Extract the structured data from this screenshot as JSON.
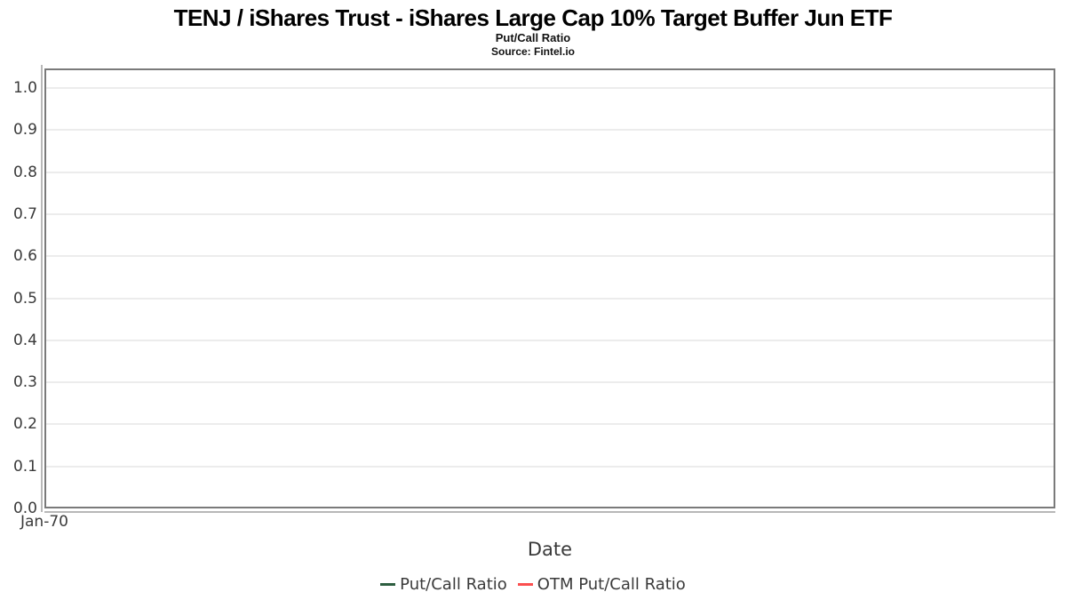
{
  "chart": {
    "title": "TENJ / iShares Trust - iShares Large Cap 10% Target Buffer Jun ETF",
    "subtitle": "Put/Call Ratio",
    "source": "Source: Fintel.io",
    "xlabel": "Date",
    "x_ticks": [
      "Jan-70"
    ],
    "y_ticks": [
      {
        "label": "0.0",
        "value": 0.0
      },
      {
        "label": "0.1",
        "value": 0.1
      },
      {
        "label": "0.2",
        "value": 0.2
      },
      {
        "label": "0.3",
        "value": 0.3
      },
      {
        "label": "0.4",
        "value": 0.4
      },
      {
        "label": "0.5",
        "value": 0.5
      },
      {
        "label": "0.6",
        "value": 0.6
      },
      {
        "label": "0.7",
        "value": 0.7
      },
      {
        "label": "0.8",
        "value": 0.8
      },
      {
        "label": "0.9",
        "value": 0.9
      },
      {
        "label": "1.0",
        "value": 1.0
      }
    ],
    "legend": [
      {
        "label": "Put/Call Ratio",
        "color": "#2d5e40"
      },
      {
        "label": "OTM Put/Call Ratio",
        "color": "#fb4f4f"
      }
    ],
    "colors": {
      "spine": "#7a7a7a",
      "tick_strip": "#b8b8b8",
      "grid": "#ececec",
      "tick_text": "#3a3a3a",
      "title_text": "#000000"
    }
  },
  "chart_data": {
    "type": "line",
    "title": "TENJ / iShares Trust - iShares Large Cap 10% Target Buffer Jun ETF",
    "subtitle": "Put/Call Ratio",
    "source": "Fintel.io",
    "xlabel": "Date",
    "ylabel": "",
    "x_tick_labels": [
      "Jan-70"
    ],
    "y_tick_values": [
      0.0,
      0.1,
      0.2,
      0.3,
      0.4,
      0.5,
      0.6,
      0.7,
      0.8,
      0.9,
      1.0
    ],
    "ylim": [
      0.0,
      1.05
    ],
    "grid": true,
    "legend_position": "bottom-center",
    "series": [
      {
        "name": "Put/Call Ratio",
        "color": "#2d5e40",
        "x": [],
        "values": []
      },
      {
        "name": "OTM Put/Call Ratio",
        "color": "#fb4f4f",
        "x": [],
        "values": []
      }
    ],
    "note": "Plot area contains no rendered data points; chart is empty with only axes, gridlines and legend."
  }
}
